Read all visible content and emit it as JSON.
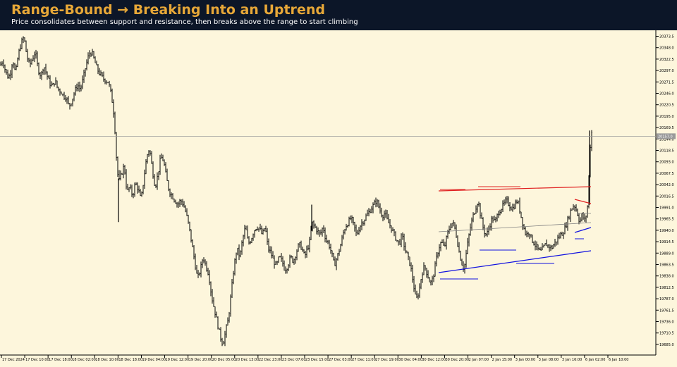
{
  "header": {
    "title": "Range-Bound → Breaking Into an Uptrend",
    "subtitle": "Price consolidates between support and resistance, then breaks above the range to start climbing"
  },
  "colors": {
    "header_bg": "#0c1628",
    "title": "#e8a838",
    "chart_bg": "#fdf6dc",
    "candles": "#000000",
    "resistance": "#e02020",
    "support": "#1010e0",
    "midline": "#808080"
  },
  "chart_data": {
    "type": "line",
    "style": "ohlc-bars",
    "title": "",
    "xlabel": "",
    "ylabel": "",
    "ylim": [
      19655,
      20400
    ],
    "y_ticks": [
      "20373.5",
      "20348.0",
      "20322.5",
      "20297.0",
      "20271.5",
      "20246.0",
      "20220.5",
      "20195.0",
      "20169.5",
      "20144.0",
      "20118.5",
      "20093.0",
      "20067.5",
      "20042.0",
      "20016.5",
      "19991.0",
      "19965.5",
      "19940.0",
      "19914.5",
      "19889.0",
      "19863.5",
      "19838.0",
      "19812.5",
      "19787.0",
      "19761.5",
      "19736.0",
      "19710.5",
      "19685.0"
    ],
    "x_ticks": [
      "17 Dec 2024",
      "17 Dec 10:00",
      "17 Dec 18:00",
      "18 Dec 02:00",
      "18 Dec 10:00",
      "18 Dec 18:00",
      "19 Dec 04:00",
      "19 Dec 12:00",
      "19 Dec 20:00",
      "20 Dec 05:00",
      "20 Dec 13:00",
      "22 Dec 23:00",
      "23 Dec 07:00",
      "23 Dec 15:00",
      "27 Dec 03:00",
      "27 Dec 11:00",
      "27 Dec 19:00",
      "30 Dec 04:00",
      "30 Dec 12:00",
      "30 Dec 20:00",
      "2 Jan 07:00",
      "2 Jan 15:00",
      "3 Jan 00:00",
      "3 Jan 08:00",
      "3 Jan 16:00",
      "6 Jan 02:00",
      "6 Jan 10:00"
    ],
    "current_price": "20157.0",
    "price_path": [
      [
        0,
        20320
      ],
      [
        4,
        20330
      ],
      [
        8,
        20305
      ],
      [
        12,
        20290
      ],
      [
        16,
        20310
      ],
      [
        18,
        20335
      ],
      [
        22,
        20300
      ],
      [
        26,
        20345
      ],
      [
        30,
        20370
      ],
      [
        34,
        20385
      ],
      [
        38,
        20340
      ],
      [
        42,
        20320
      ],
      [
        46,
        20335
      ],
      [
        50,
        20350
      ],
      [
        54,
        20310
      ],
      [
        58,
        20295
      ],
      [
        62,
        20320
      ],
      [
        66,
        20300
      ],
      [
        70,
        20280
      ],
      [
        74,
        20270
      ],
      [
        78,
        20285
      ],
      [
        82,
        20265
      ],
      [
        86,
        20260
      ],
      [
        90,
        20250
      ],
      [
        94,
        20245
      ],
      [
        98,
        20225
      ],
      [
        102,
        20240
      ],
      [
        106,
        20260
      ],
      [
        110,
        20275
      ],
      [
        114,
        20265
      ],
      [
        118,
        20290
      ],
      [
        122,
        20320
      ],
      [
        126,
        20345
      ],
      [
        130,
        20350
      ],
      [
        134,
        20330
      ],
      [
        138,
        20310
      ],
      [
        142,
        20300
      ],
      [
        146,
        20290
      ],
      [
        150,
        20285
      ],
      [
        154,
        20280
      ],
      [
        158,
        20250
      ],
      [
        162,
        20200
      ],
      [
        165,
        20110
      ],
      [
        168,
        20050
      ],
      [
        172,
        20070
      ],
      [
        176,
        20090
      ],
      [
        180,
        20030
      ],
      [
        184,
        20040
      ],
      [
        188,
        20020
      ],
      [
        192,
        20050
      ],
      [
        196,
        20035
      ],
      [
        200,
        20010
      ],
      [
        204,
        20060
      ],
      [
        208,
        20110
      ],
      [
        212,
        20130
      ],
      [
        216,
        20080
      ],
      [
        220,
        20040
      ],
      [
        224,
        20070
      ],
      [
        228,
        20110
      ],
      [
        232,
        20100
      ],
      [
        236,
        20060
      ],
      [
        240,
        20030
      ],
      [
        244,
        20020
      ],
      [
        248,
        20010
      ],
      [
        252,
        20000
      ],
      [
        256,
        20010
      ],
      [
        260,
        20000
      ],
      [
        264,
        19980
      ],
      [
        268,
        19950
      ],
      [
        272,
        19910
      ],
      [
        276,
        19870
      ],
      [
        280,
        19830
      ],
      [
        284,
        19850
      ],
      [
        288,
        19880
      ],
      [
        292,
        19860
      ],
      [
        296,
        19840
      ],
      [
        300,
        19790
      ],
      [
        304,
        19760
      ],
      [
        308,
        19730
      ],
      [
        312,
        19700
      ],
      [
        316,
        19680
      ],
      [
        320,
        19710
      ],
      [
        324,
        19740
      ],
      [
        328,
        19800
      ],
      [
        332,
        19860
      ],
      [
        336,
        19900
      ],
      [
        340,
        19880
      ],
      [
        344,
        19920
      ],
      [
        348,
        19950
      ],
      [
        352,
        19910
      ],
      [
        356,
        19920
      ],
      [
        360,
        19940
      ],
      [
        364,
        19950
      ],
      [
        368,
        19945
      ],
      [
        372,
        19930
      ],
      [
        376,
        19950
      ],
      [
        380,
        19900
      ],
      [
        384,
        19890
      ],
      [
        388,
        19870
      ],
      [
        392,
        19860
      ],
      [
        396,
        19880
      ],
      [
        400,
        19870
      ],
      [
        404,
        19850
      ],
      [
        408,
        19860
      ],
      [
        412,
        19880
      ],
      [
        416,
        19870
      ],
      [
        420,
        19890
      ],
      [
        424,
        19910
      ],
      [
        428,
        19900
      ],
      [
        432,
        19880
      ],
      [
        436,
        19900
      ],
      [
        440,
        19920
      ],
      [
        442,
        19960
      ],
      [
        446,
        19950
      ],
      [
        450,
        19940
      ],
      [
        454,
        19930
      ],
      [
        458,
        19950
      ],
      [
        462,
        19920
      ],
      [
        466,
        19910
      ],
      [
        470,
        19890
      ],
      [
        474,
        19860
      ],
      [
        478,
        19880
      ],
      [
        482,
        19900
      ],
      [
        486,
        19930
      ],
      [
        490,
        19950
      ],
      [
        494,
        19960
      ],
      [
        498,
        19970
      ],
      [
        502,
        19950
      ],
      [
        506,
        19930
      ],
      [
        510,
        19950
      ],
      [
        514,
        19960
      ],
      [
        518,
        19970
      ],
      [
        522,
        19980
      ],
      [
        526,
        19990
      ],
      [
        530,
        20000
      ],
      [
        534,
        20010
      ],
      [
        538,
        19990
      ],
      [
        542,
        19975
      ],
      [
        546,
        19980
      ],
      [
        550,
        19960
      ],
      [
        554,
        19950
      ],
      [
        558,
        19935
      ],
      [
        562,
        19920
      ],
      [
        566,
        19910
      ],
      [
        570,
        19930
      ],
      [
        574,
        19900
      ],
      [
        578,
        19880
      ],
      [
        582,
        19860
      ],
      [
        586,
        19820
      ],
      [
        590,
        19780
      ],
      [
        594,
        19800
      ],
      [
        598,
        19840
      ],
      [
        602,
        19860
      ],
      [
        606,
        19840
      ],
      [
        610,
        19820
      ],
      [
        614,
        19830
      ],
      [
        618,
        19870
      ],
      [
        622,
        19900
      ],
      [
        626,
        19915
      ],
      [
        630,
        19900
      ],
      [
        634,
        19930
      ],
      [
        638,
        19950
      ],
      [
        642,
        19960
      ],
      [
        646,
        19940
      ],
      [
        650,
        19900
      ],
      [
        654,
        19870
      ],
      [
        658,
        19850
      ],
      [
        662,
        19900
      ],
      [
        666,
        19940
      ],
      [
        670,
        19970
      ],
      [
        674,
        19990
      ],
      [
        678,
        20010
      ],
      [
        682,
        19970
      ],
      [
        686,
        19940
      ],
      [
        690,
        19930
      ],
      [
        694,
        19950
      ],
      [
        698,
        19970
      ],
      [
        702,
        19960
      ],
      [
        706,
        19980
      ],
      [
        710,
        19990
      ],
      [
        714,
        20000
      ],
      [
        718,
        20010
      ],
      [
        722,
        20000
      ],
      [
        726,
        19990
      ],
      [
        730,
        20000
      ],
      [
        734,
        20010
      ],
      [
        738,
        19980
      ],
      [
        742,
        19950
      ],
      [
        746,
        19930
      ],
      [
        750,
        19940
      ],
      [
        754,
        19920
      ],
      [
        758,
        19910
      ],
      [
        762,
        19900
      ],
      [
        766,
        19890
      ],
      [
        770,
        19900
      ],
      [
        774,
        19910
      ],
      [
        778,
        19905
      ],
      [
        782,
        19900
      ],
      [
        786,
        19910
      ],
      [
        790,
        19920
      ],
      [
        794,
        19930
      ],
      [
        798,
        19935
      ],
      [
        802,
        19950
      ],
      [
        806,
        19970
      ],
      [
        810,
        19990
      ],
      [
        814,
        20000
      ],
      [
        818,
        19985
      ],
      [
        822,
        19960
      ],
      [
        824,
        19970
      ],
      [
        826,
        19980
      ],
      [
        828,
        19960
      ],
      [
        830,
        19970
      ],
      [
        832,
        19980
      ],
      [
        834,
        20010
      ],
      [
        836,
        20120
      ],
      [
        838,
        20150
      ],
      [
        839,
        20165
      ]
    ]
  }
}
